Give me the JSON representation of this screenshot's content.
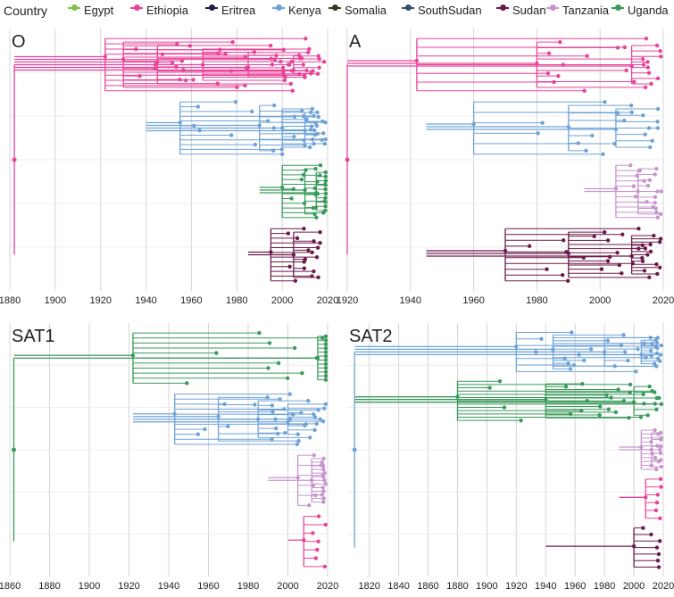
{
  "legend": {
    "title": "Country",
    "items": [
      {
        "name": "Egypt",
        "color": "#7cc242"
      },
      {
        "name": "Ethiopia",
        "color": "#e8439a"
      },
      {
        "name": "Eritrea",
        "color": "#1f1e4a"
      },
      {
        "name": "Kenya",
        "color": "#6fa3d8"
      },
      {
        "name": "Somalia",
        "color": "#2f3b23"
      },
      {
        "name": "SouthSudan",
        "color": "#344d6e"
      },
      {
        "name": "Sudan",
        "color": "#6b1a4a"
      },
      {
        "name": "Tanzania",
        "color": "#c795cd"
      },
      {
        "name": "Uganda",
        "color": "#3a9a5b"
      }
    ]
  },
  "chart_data": [
    {
      "type": "phylogenetic-tree",
      "title": "O",
      "xlabel": "",
      "xlim": [
        1880,
        2020
      ],
      "xticks": [
        1880,
        1900,
        1920,
        1940,
        1960,
        1980,
        2000,
        2020
      ],
      "clades": [
        {
          "country": "Ethiopia",
          "root_year": 1882,
          "branch_years": [
            1922,
            1930,
            1945,
            1965,
            1985,
            2005
          ]
        },
        {
          "country": "Kenya",
          "root_year": 1940,
          "branch_years": [
            1955,
            1990,
            2000,
            2010
          ]
        },
        {
          "country": "Uganda",
          "root_year": 1990,
          "branch_years": [
            2000,
            2010,
            2015
          ]
        },
        {
          "country": "Sudan",
          "root_year": 1985,
          "branch_years": [
            1995,
            2005
          ]
        }
      ]
    },
    {
      "type": "phylogenetic-tree",
      "title": "A",
      "xlabel": "",
      "xlim": [
        1920,
        2020
      ],
      "xticks": [
        1920,
        1940,
        1960,
        1980,
        2000,
        2020
      ],
      "clades": [
        {
          "country": "Ethiopia",
          "root_year": 1920,
          "branch_years": [
            1942,
            1980,
            2010
          ]
        },
        {
          "country": "Kenya",
          "root_year": 1945,
          "branch_years": [
            1960,
            1990,
            2005
          ]
        },
        {
          "country": "Tanzania",
          "root_year": 1995,
          "branch_years": [
            2005,
            2012
          ]
        },
        {
          "country": "Sudan",
          "root_year": 1945,
          "branch_years": [
            1970,
            1990,
            2010
          ]
        }
      ]
    },
    {
      "type": "phylogenetic-tree",
      "title": "SAT1",
      "xlabel": "",
      "xlim": [
        1860,
        2020
      ],
      "xticks": [
        1860,
        1880,
        1900,
        1920,
        1940,
        1960,
        1980,
        2000,
        2020
      ],
      "clades": [
        {
          "country": "Uganda",
          "root_year": 1862,
          "branch_years": [
            1922,
            2015
          ]
        },
        {
          "country": "Kenya",
          "root_year": 1922,
          "branch_years": [
            1943,
            1965,
            1985,
            2000
          ]
        },
        {
          "country": "Tanzania",
          "root_year": 1990,
          "branch_years": [
            2005,
            2012
          ]
        },
        {
          "country": "Ethiopia",
          "root_year": 2000,
          "branch_years": [
            2008
          ]
        }
      ]
    },
    {
      "type": "phylogenetic-tree",
      "title": "SAT2",
      "xlabel": "",
      "xlim": [
        1805,
        2020
      ],
      "xticks": [
        1820,
        1840,
        1860,
        1880,
        1900,
        1920,
        1940,
        1960,
        1980,
        2000,
        2020
      ],
      "clades": [
        {
          "country": "Kenya",
          "root_year": 1810,
          "branch_years": [
            1920,
            1945,
            1980,
            2005
          ]
        },
        {
          "country": "Uganda",
          "root_year": 1810,
          "branch_years": [
            1880,
            1940,
            2000
          ]
        },
        {
          "country": "Tanzania",
          "root_year": 1990,
          "branch_years": [
            2005,
            2012
          ]
        },
        {
          "country": "Ethiopia",
          "root_year": 1990,
          "branch_years": [
            2008
          ]
        },
        {
          "country": "Sudan",
          "root_year": 1940,
          "branch_years": [
            2000
          ]
        }
      ]
    }
  ]
}
